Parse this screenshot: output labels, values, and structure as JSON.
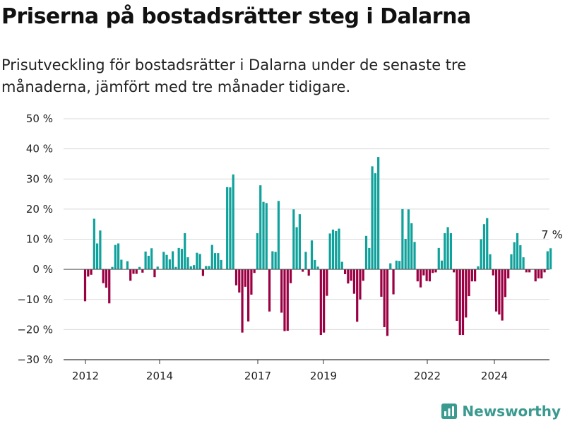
{
  "title": "Priserna på bostadsrätter steg i Dalarna",
  "subtitle": "Prisutveckling för bostadsrätter i Dalarna under de senaste tre månaderna, jämfört med tre månader tidigare.",
  "brand": "Newsworthy",
  "colors": {
    "positive": "#0fa19b",
    "negative": "#9b0043",
    "grid": "#d9d9d9",
    "axis": "#333333",
    "text": "#222222",
    "brand": "#3a9a8f"
  },
  "chart_data": {
    "type": "bar",
    "y_ticks": [
      "50 %",
      "40 %",
      "30 %",
      "20 %",
      "10 %",
      "0 %",
      "−10 %",
      "−20 %",
      "−30 %"
    ],
    "x_ticks": [
      "2012",
      "2014",
      "2017",
      "2019",
      "2022",
      "2024"
    ],
    "ylim": [
      -30,
      50
    ],
    "annotation": "7 %",
    "values": [
      -10.6,
      -2.4,
      -1.8,
      16.8,
      8.6,
      12.9,
      -4.6,
      -6.1,
      -11.3,
      0.8,
      8.1,
      8.6,
      3.2,
      0,
      2.7,
      -3.8,
      -1.5,
      -1.5,
      0.8,
      -1.1,
      5.9,
      4.5,
      7.0,
      -2.6,
      0.9,
      0,
      5.8,
      4.8,
      3.3,
      6.0,
      0.8,
      7.1,
      6.8,
      12.0,
      4.0,
      1.0,
      1.4,
      5.5,
      5.1,
      -2.2,
      1.1,
      1.1,
      8.1,
      5.4,
      5.4,
      3.1,
      0,
      27.3,
      27.2,
      31.5,
      -5.3,
      -7.7,
      -21.0,
      -5.8,
      -17.3,
      -8.4,
      -1.2,
      12.0,
      27.9,
      22.4,
      22.0,
      -14.0,
      6.0,
      5.8,
      22.7,
      -14.4,
      -20.5,
      -20.4,
      -4.6,
      19.9,
      14.0,
      18.3,
      -0.8,
      5.8,
      -2.1,
      9.6,
      3.1,
      0.9,
      -21.8,
      -21.0,
      -8.8,
      11.9,
      13.2,
      12.7,
      13.5,
      2.5,
      -1.6,
      -4.7,
      -3.8,
      -8.1,
      -17.4,
      -10.0,
      -3.8,
      11.1,
      7.1,
      34.2,
      31.9,
      37.3,
      -9.1,
      -19.2,
      -22.1,
      2.0,
      -8.3,
      2.9,
      2.8,
      20.0,
      10.1,
      19.9,
      15.3,
      9.1,
      -4.0,
      -6.0,
      -2.0,
      -3.9,
      -4.0,
      -1.2,
      -1.0,
      7.1,
      2.9,
      12.0,
      14.0,
      12.0,
      -1.0,
      -17.1,
      -21.8,
      -21.8,
      -16.0,
      -8.9,
      -4.0,
      -4.0,
      1.0,
      10.0,
      15.0,
      17.0,
      5.0,
      -2.0,
      -14.0,
      -15.0,
      -17.0,
      -9.2,
      -3.0,
      5.0,
      9.0,
      12.0,
      8.0,
      4.0,
      -1.0,
      -1.0,
      0,
      -4.0,
      -3.0,
      -3.0,
      -1.0,
      6.0,
      7.0
    ]
  }
}
